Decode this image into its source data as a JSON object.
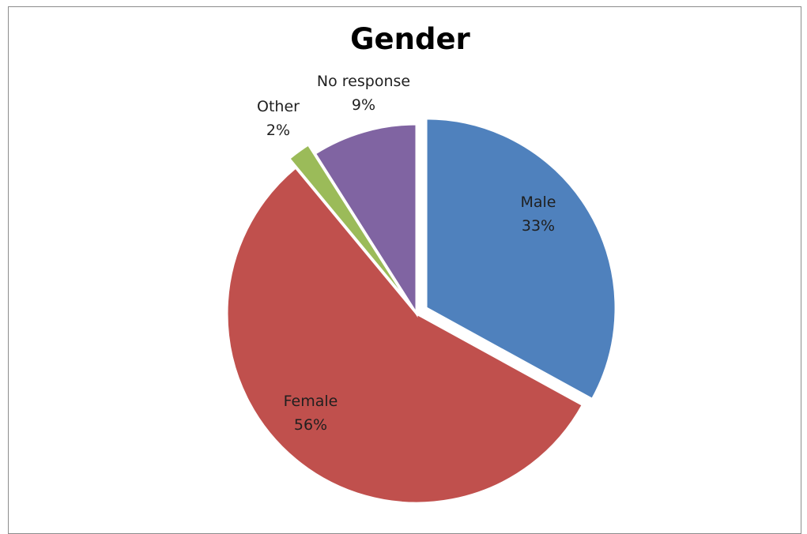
{
  "chart_data": {
    "type": "pie",
    "title": "Gender",
    "slices": [
      {
        "name": "Male",
        "value": 33,
        "label": "33%",
        "color": "#4F81BD",
        "exploded": true
      },
      {
        "name": "Female",
        "value": 56,
        "label": "56%",
        "color": "#C0504D",
        "exploded": false
      },
      {
        "name": "Other",
        "value": 2,
        "label": "2%",
        "color": "#9BBB59",
        "exploded": true
      },
      {
        "name": "No response",
        "value": 9,
        "label": "9%",
        "color": "#8064A2",
        "exploded": false
      }
    ],
    "legend": "none",
    "data_labels": "category and percentage"
  }
}
